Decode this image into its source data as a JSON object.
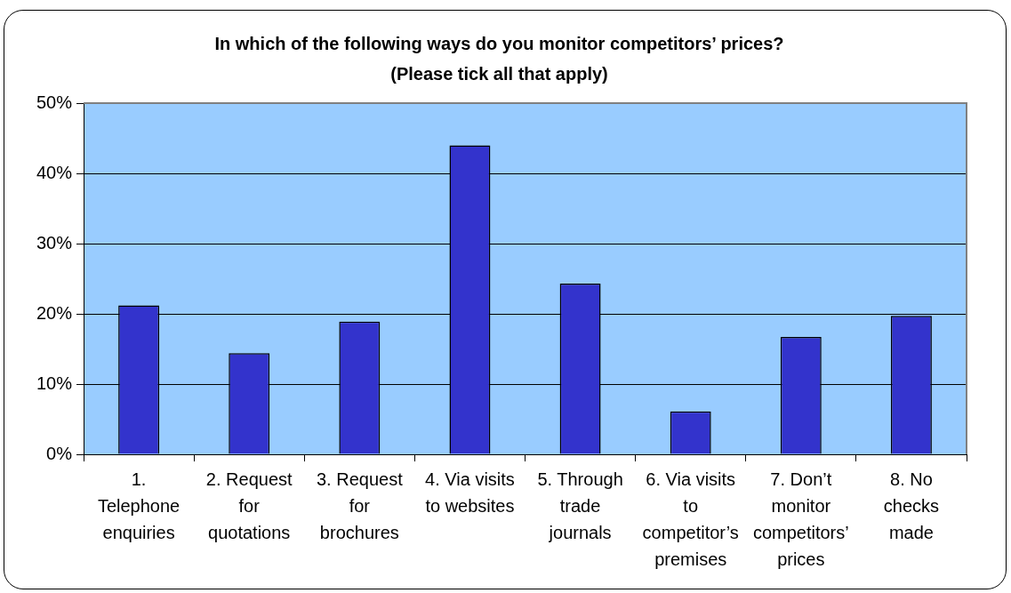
{
  "chart_data": {
    "type": "bar",
    "title": "In which of the following ways do you monitor competitors’ prices?",
    "subtitle": "(Please tick all that apply)",
    "categories": [
      "1. Telephone enquiries",
      "2. Request for quotations",
      "3. Request for brochures",
      "4. Via visits to websites",
      "5. Through trade journals",
      "6. Via visits to competitor’s premises",
      "7. Don’t monitor competitors’ prices",
      "8. No checks made"
    ],
    "values": [
      21.2,
      14.4,
      18.9,
      44.0,
      24.3,
      6.1,
      16.7,
      19.7
    ],
    "color": "#3333cc",
    "ylim": [
      0,
      50
    ],
    "yticks": [
      {
        "value": 0,
        "label": "0%"
      },
      {
        "value": 10,
        "label": "10%"
      },
      {
        "value": 20,
        "label": "20%"
      },
      {
        "value": 30,
        "label": "30%"
      },
      {
        "value": 40,
        "label": "40%"
      },
      {
        "value": 50,
        "label": "50%"
      }
    ],
    "grid": "y"
  }
}
